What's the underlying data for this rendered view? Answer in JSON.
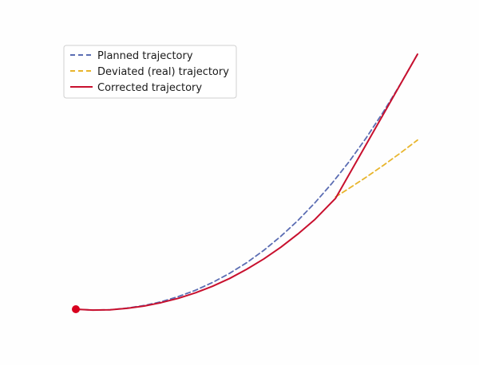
{
  "chart_data": {
    "type": "line",
    "title": "",
    "xlabel": "",
    "ylabel": "",
    "axes_visible": false,
    "grid": false,
    "xlim": [
      0,
      10
    ],
    "ylim": [
      0,
      8
    ],
    "legend": {
      "placement": "top-left",
      "entries": [
        {
          "label": "Planned trajectory",
          "color": "#5b6db3",
          "style": "dashed"
        },
        {
          "label": "Deviated (real) trajectory",
          "color": "#e8b52c",
          "style": "dashed"
        },
        {
          "label": "Corrected trajectory",
          "color": "#c8102e",
          "style": "solid"
        }
      ]
    },
    "series": [
      {
        "name": "Planned trajectory",
        "color": "#5b6db3",
        "style": "dashed",
        "x": [
          0,
          0.5,
          1,
          1.5,
          2,
          2.5,
          3,
          3.5,
          4,
          4.5,
          5,
          5.5,
          6,
          6.5,
          7,
          7.5,
          8,
          8.5,
          9,
          9.5,
          10
        ],
        "y": [
          0,
          -0.03,
          -0.02,
          0.04,
          0.13,
          0.26,
          0.44,
          0.66,
          0.93,
          1.25,
          1.62,
          2.05,
          2.54,
          3.09,
          3.71,
          4.39,
          5.14,
          5.97,
          6.87,
          7.84,
          8.88
        ]
      },
      {
        "name": "Deviated (real) trajectory",
        "color": "#e8b52c",
        "style": "dashed",
        "x": [
          7.6,
          8,
          8.5,
          9,
          9.5,
          10
        ],
        "y": [
          3.91,
          4.21,
          4.6,
          5.01,
          5.44,
          5.89
        ]
      },
      {
        "name": "Corrected trajectory",
        "color": "#c8102e",
        "style": "solid",
        "x": [
          0,
          0.5,
          1,
          1.5,
          2,
          2.5,
          3,
          3.5,
          4,
          4.5,
          5,
          5.5,
          6,
          6.5,
          7,
          7.6,
          10
        ],
        "y": [
          0,
          -0.03,
          -0.02,
          0.03,
          0.11,
          0.23,
          0.38,
          0.57,
          0.8,
          1.07,
          1.39,
          1.75,
          2.16,
          2.62,
          3.13,
          3.86,
          8.88
        ]
      }
    ],
    "start_marker": {
      "x": 0,
      "y": 0,
      "color": "#d8001e"
    }
  }
}
